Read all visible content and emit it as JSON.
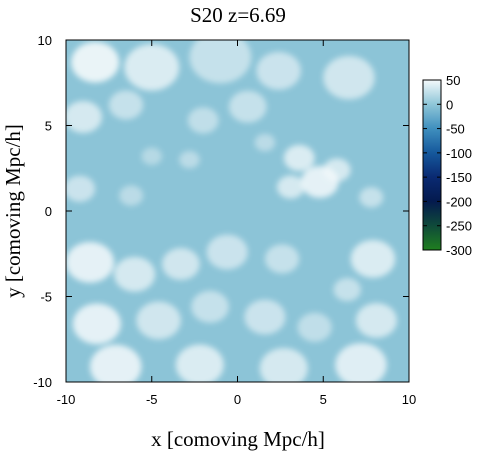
{
  "chart_data": {
    "type": "heatmap",
    "title": "S20 z=6.69",
    "xlabel": "x [comoving Mpc/h]",
    "ylabel": "y [comoving Mpc/h]",
    "xlim": [
      -10,
      10
    ],
    "ylim": [
      -10,
      10
    ],
    "x_ticks": [
      "-10",
      "-5",
      "0",
      "5",
      "10"
    ],
    "y_ticks": [
      "10",
      "5",
      "0",
      "-5",
      "-10"
    ],
    "x_tick_values": [
      -10,
      -5,
      0,
      5,
      10
    ],
    "y_tick_values": [
      10,
      5,
      0,
      -5,
      -10
    ],
    "colorbar": {
      "range": [
        -300,
        50
      ],
      "ticks": [
        "50",
        "0",
        "-50",
        "-100",
        "-150",
        "-200",
        "-250",
        "-300"
      ],
      "tick_values": [
        50,
        0,
        -50,
        -100,
        -150,
        -200,
        -250,
        -300
      ],
      "colormap": [
        {
          "value": 50,
          "color": "#f4f9fb"
        },
        {
          "value": 0,
          "color": "#8fc6d8"
        },
        {
          "value": -50,
          "color": "#3f8fbe"
        },
        {
          "value": -100,
          "color": "#15589c"
        },
        {
          "value": -150,
          "color": "#0a2a72"
        },
        {
          "value": -200,
          "color": "#041a4e"
        },
        {
          "value": -250,
          "color": "#0f4a3a"
        },
        {
          "value": -300,
          "color": "#1f7f1f"
        }
      ]
    },
    "field": {
      "background_value": -2,
      "hotspot_value": 50,
      "hotspots": [
        {
          "x": -8.3,
          "y": 8.7,
          "r": 1.4,
          "a": 0.9
        },
        {
          "x": -5.0,
          "y": 8.4,
          "r": 1.6,
          "a": 0.75
        },
        {
          "x": -1.0,
          "y": 9.0,
          "r": 1.8,
          "a": 0.55
        },
        {
          "x": 2.4,
          "y": 8.2,
          "r": 1.3,
          "a": 0.6
        },
        {
          "x": 6.5,
          "y": 7.8,
          "r": 1.5,
          "a": 0.65
        },
        {
          "x": -9.0,
          "y": 5.5,
          "r": 1.1,
          "a": 0.7
        },
        {
          "x": -6.5,
          "y": 6.2,
          "r": 1.0,
          "a": 0.55
        },
        {
          "x": -2.0,
          "y": 5.3,
          "r": 0.9,
          "a": 0.5
        },
        {
          "x": 0.6,
          "y": 6.1,
          "r": 1.1,
          "a": 0.55
        },
        {
          "x": 3.6,
          "y": 3.1,
          "r": 0.9,
          "a": 0.75
        },
        {
          "x": 4.8,
          "y": 1.7,
          "r": 1.1,
          "a": 0.85
        },
        {
          "x": 5.8,
          "y": 2.4,
          "r": 0.8,
          "a": 0.7
        },
        {
          "x": 3.1,
          "y": 1.4,
          "r": 0.8,
          "a": 0.7
        },
        {
          "x": 7.8,
          "y": 0.8,
          "r": 0.7,
          "a": 0.55
        },
        {
          "x": -9.2,
          "y": 1.3,
          "r": 0.9,
          "a": 0.6
        },
        {
          "x": -6.2,
          "y": 0.9,
          "r": 0.7,
          "a": 0.45
        },
        {
          "x": -2.8,
          "y": 3.0,
          "r": 0.6,
          "a": 0.45
        },
        {
          "x": -8.6,
          "y": -3.0,
          "r": 1.4,
          "a": 0.85
        },
        {
          "x": -6.0,
          "y": -3.7,
          "r": 1.2,
          "a": 0.7
        },
        {
          "x": -3.3,
          "y": -3.1,
          "r": 1.1,
          "a": 0.65
        },
        {
          "x": -0.6,
          "y": -2.4,
          "r": 1.2,
          "a": 0.6
        },
        {
          "x": 2.6,
          "y": -2.8,
          "r": 1.0,
          "a": 0.55
        },
        {
          "x": 7.9,
          "y": -2.8,
          "r": 1.3,
          "a": 0.75
        },
        {
          "x": -8.2,
          "y": -6.6,
          "r": 1.4,
          "a": 0.85
        },
        {
          "x": -4.6,
          "y": -6.4,
          "r": 1.3,
          "a": 0.65
        },
        {
          "x": -1.6,
          "y": -5.6,
          "r": 1.1,
          "a": 0.55
        },
        {
          "x": 1.6,
          "y": -6.2,
          "r": 1.2,
          "a": 0.6
        },
        {
          "x": 4.5,
          "y": -6.8,
          "r": 1.0,
          "a": 0.5
        },
        {
          "x": 8.1,
          "y": -6.4,
          "r": 1.2,
          "a": 0.7
        },
        {
          "x": -7.1,
          "y": -9.1,
          "r": 1.5,
          "a": 0.85
        },
        {
          "x": -2.2,
          "y": -9.0,
          "r": 1.4,
          "a": 0.75
        },
        {
          "x": 2.7,
          "y": -9.2,
          "r": 1.4,
          "a": 0.7
        },
        {
          "x": 7.2,
          "y": -9.0,
          "r": 1.5,
          "a": 0.8
        },
        {
          "x": 6.4,
          "y": -4.6,
          "r": 0.8,
          "a": 0.55
        },
        {
          "x": -5.0,
          "y": 3.2,
          "r": 0.6,
          "a": 0.4
        },
        {
          "x": 1.6,
          "y": 4.0,
          "r": 0.6,
          "a": 0.45
        }
      ]
    }
  }
}
